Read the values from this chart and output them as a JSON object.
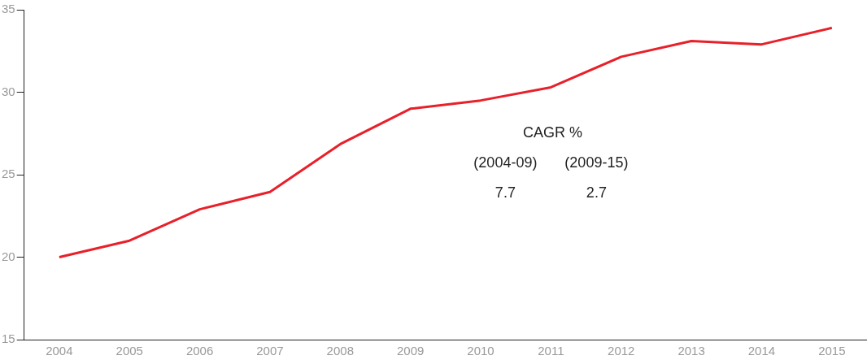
{
  "chart_data": {
    "type": "line",
    "categories": [
      "2004",
      "2005",
      "2006",
      "2007",
      "2008",
      "2009",
      "2010",
      "2011",
      "2012",
      "2013",
      "2014",
      "2015"
    ],
    "series": [
      {
        "color": "#e8202a",
        "values": [
          20.0,
          21.0,
          22.9,
          23.95,
          26.85,
          29.0,
          29.5,
          30.3,
          32.15,
          33.1,
          32.9,
          33.9
        ]
      }
    ],
    "ylim": [
      15,
      35
    ],
    "yticks": [
      15,
      20,
      25,
      30,
      35
    ],
    "grid": false,
    "legend": false,
    "marker": "none",
    "line_style": "solid",
    "annotations": [
      "CAGR %",
      "(2004-09)",
      "(2009-15)",
      "7.7",
      "2.7"
    ]
  }
}
